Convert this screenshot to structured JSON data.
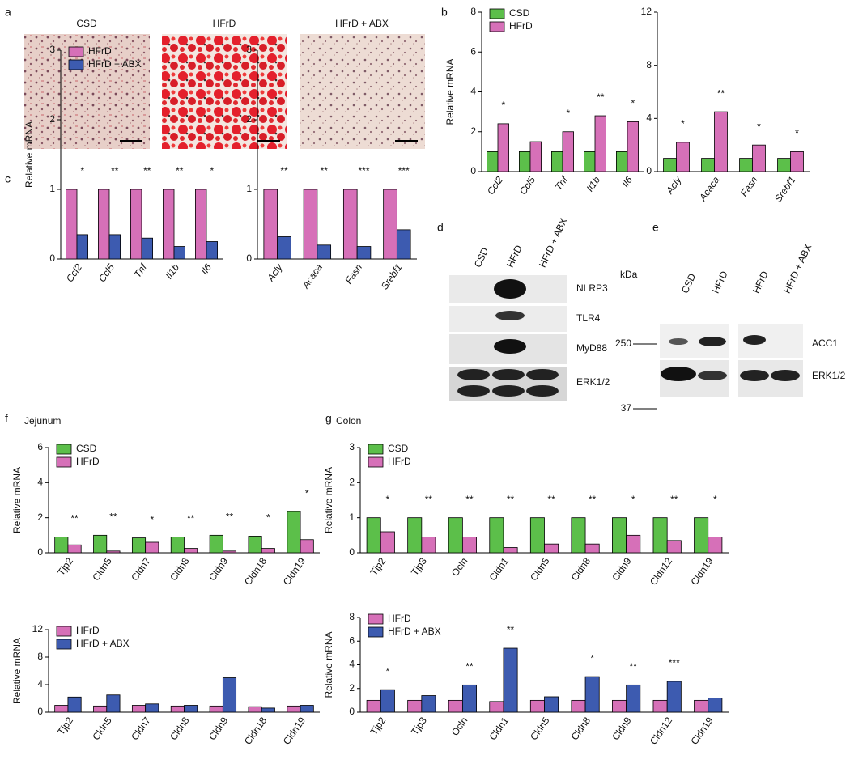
{
  "panels": [
    "a",
    "b",
    "c",
    "d",
    "e",
    "f",
    "g"
  ],
  "histology": {
    "labels": [
      "CSD",
      "HFrD",
      "HFrD + ABX"
    ]
  },
  "blot_d": {
    "lanes": [
      "CSD",
      "HFrD",
      "HFrD + ABX"
    ],
    "rows": [
      "NLRP3",
      "TLR4",
      "MyD88",
      "ERK1/2"
    ]
  },
  "blot_e": {
    "unit": "kDa",
    "lanes_left": [
      "CSD",
      "HFrD"
    ],
    "lanes_right": [
      "HFrD",
      "HFrD + ABX"
    ],
    "rows": [
      "ACC1",
      "ERK1/2"
    ],
    "markers": [
      "250",
      "37"
    ]
  },
  "chart_data": [
    {
      "type": "bar",
      "ylabel": "Relative mRNA",
      "legend": "upper left",
      "categories": [
        "Ccl2",
        "Ccl5",
        "Tnf",
        "Il1b",
        "Il6"
      ],
      "series": [
        {
          "name": "CSD",
          "color": "#5cbf4a",
          "values": [
            1.0,
            1.0,
            1.0,
            1.0,
            1.0
          ]
        },
        {
          "name": "HFrD",
          "color": "#d670b8",
          "values": [
            2.4,
            1.5,
            2.0,
            2.8,
            2.5
          ]
        }
      ],
      "annotations": [
        "*",
        null,
        "*",
        "**",
        "*"
      ],
      "ylim": [
        0,
        8
      ],
      "yticks": [
        0,
        2,
        4,
        6,
        8
      ]
    },
    {
      "type": "bar",
      "categories": [
        "Acly",
        "Acaca",
        "Fasn",
        "Srebf1"
      ],
      "series": [
        {
          "color": "#5cbf4a",
          "values": [
            1.0,
            1.0,
            1.0,
            1.0
          ]
        },
        {
          "color": "#d670b8",
          "values": [
            2.2,
            4.5,
            2.0,
            1.5
          ]
        }
      ],
      "annotations": [
        "*",
        "**",
        "*",
        "*"
      ],
      "ylim": [
        0,
        12
      ],
      "yticks": [
        0,
        4,
        8,
        12
      ]
    },
    {
      "type": "bar",
      "ylabel": "Relative mRNA",
      "legend": "upper left",
      "categories": [
        "Ccl2",
        "Ccl5",
        "Tnf",
        "Il1b",
        "Il6"
      ],
      "series": [
        {
          "name": "HFrD",
          "color": "#d670b8",
          "values": [
            1.0,
            1.0,
            1.0,
            1.0,
            1.0
          ]
        },
        {
          "name": "HFrD + ABX",
          "color": "#3d5bb0",
          "values": [
            0.35,
            0.35,
            0.3,
            0.18,
            0.25
          ]
        }
      ],
      "annotations": [
        "*",
        "**",
        "**",
        "**",
        "*"
      ],
      "ylim": [
        0,
        3
      ],
      "yticks": [
        0,
        1,
        2,
        3
      ]
    },
    {
      "type": "bar",
      "categories": [
        "Acly",
        "Acaca",
        "Fasn",
        "Srebf1"
      ],
      "series": [
        {
          "color": "#d670b8",
          "values": [
            1.0,
            1.0,
            1.0,
            1.0
          ]
        },
        {
          "color": "#3d5bb0",
          "values": [
            0.32,
            0.2,
            0.18,
            0.42
          ]
        }
      ],
      "annotations": [
        "**",
        "**",
        "***",
        "***"
      ],
      "ylim": [
        0,
        3
      ],
      "yticks": [
        0,
        1,
        2,
        3
      ]
    },
    {
      "type": "bar",
      "title": "Jejunum",
      "ylabel": "Relative mRNA",
      "legend": "upper left",
      "categories": [
        "Tjp2",
        "Cldn5",
        "Cldn7",
        "Cldn8",
        "Cldn9",
        "Cldn18",
        "Cldn19"
      ],
      "series": [
        {
          "name": "CSD",
          "color": "#5cbf4a",
          "values": [
            0.9,
            1.0,
            0.85,
            0.9,
            1.0,
            0.95,
            2.35
          ]
        },
        {
          "name": "HFrD",
          "color": "#d670b8",
          "values": [
            0.45,
            0.1,
            0.6,
            0.25,
            0.1,
            0.25,
            0.75
          ]
        }
      ],
      "annotations": [
        "**",
        "**",
        "*",
        "**",
        "**",
        "*",
        "*"
      ],
      "ylim": [
        0,
        6
      ],
      "yticks": [
        0,
        2,
        4,
        6
      ]
    },
    {
      "type": "bar",
      "ylabel": "Relative mRNA",
      "legend": "upper left",
      "categories": [
        "Tjp2",
        "Cldn5",
        "Cldn7",
        "Cldn8",
        "Cldn9",
        "Cldn18",
        "Cldn19"
      ],
      "series": [
        {
          "name": "HFrD",
          "color": "#d670b8",
          "values": [
            1.0,
            0.9,
            1.0,
            0.9,
            0.9,
            0.8,
            0.9
          ]
        },
        {
          "name": "HFrD + ABX",
          "color": "#3d5bb0",
          "values": [
            2.2,
            2.5,
            1.2,
            1.0,
            5.0,
            0.6,
            1.0
          ]
        }
      ],
      "ylim": [
        0,
        12
      ],
      "yticks": [
        0,
        4,
        8,
        12
      ]
    },
    {
      "type": "bar",
      "title": "Colon",
      "ylabel": "Relative mRNA",
      "legend": "upper left",
      "categories": [
        "Tjp2",
        "Tjp3",
        "Ocln",
        "Cldn1",
        "Cldn5",
        "Cldn8",
        "Cldn9",
        "Cldn12",
        "Cldn19"
      ],
      "series": [
        {
          "name": "CSD",
          "color": "#5cbf4a",
          "values": [
            1.0,
            1.0,
            1.0,
            1.0,
            1.0,
            1.0,
            1.0,
            1.0,
            1.0
          ]
        },
        {
          "name": "HFrD",
          "color": "#d670b8",
          "values": [
            0.6,
            0.45,
            0.45,
            0.15,
            0.25,
            0.25,
            0.5,
            0.35,
            0.45
          ]
        }
      ],
      "annotations": [
        "*",
        "**",
        "**",
        "**",
        "**",
        "**",
        "*",
        "**",
        "*"
      ],
      "ylim": [
        0,
        3
      ],
      "yticks": [
        0,
        1,
        2,
        3
      ]
    },
    {
      "type": "bar",
      "ylabel": "Relative mRNA",
      "legend": "upper left",
      "categories": [
        "Tjp2",
        "Tjp3",
        "Ocln",
        "Cldn1",
        "Cldn5",
        "Cldn8",
        "Cldn9",
        "Cldn12",
        "Cldn19"
      ],
      "series": [
        {
          "name": "HFrD",
          "color": "#d670b8",
          "values": [
            1.0,
            1.0,
            1.0,
            0.9,
            1.0,
            1.0,
            1.0,
            1.0,
            1.0
          ]
        },
        {
          "name": "HFrD + ABX",
          "color": "#3d5bb0",
          "values": [
            1.9,
            1.4,
            2.3,
            5.4,
            1.3,
            3.0,
            2.3,
            2.6,
            1.2
          ]
        }
      ],
      "annotations": [
        "*",
        null,
        "**",
        "**",
        null,
        "*",
        "**",
        "***",
        null
      ],
      "ylim": [
        0,
        8
      ],
      "yticks": [
        0,
        2,
        4,
        6,
        8
      ]
    }
  ]
}
